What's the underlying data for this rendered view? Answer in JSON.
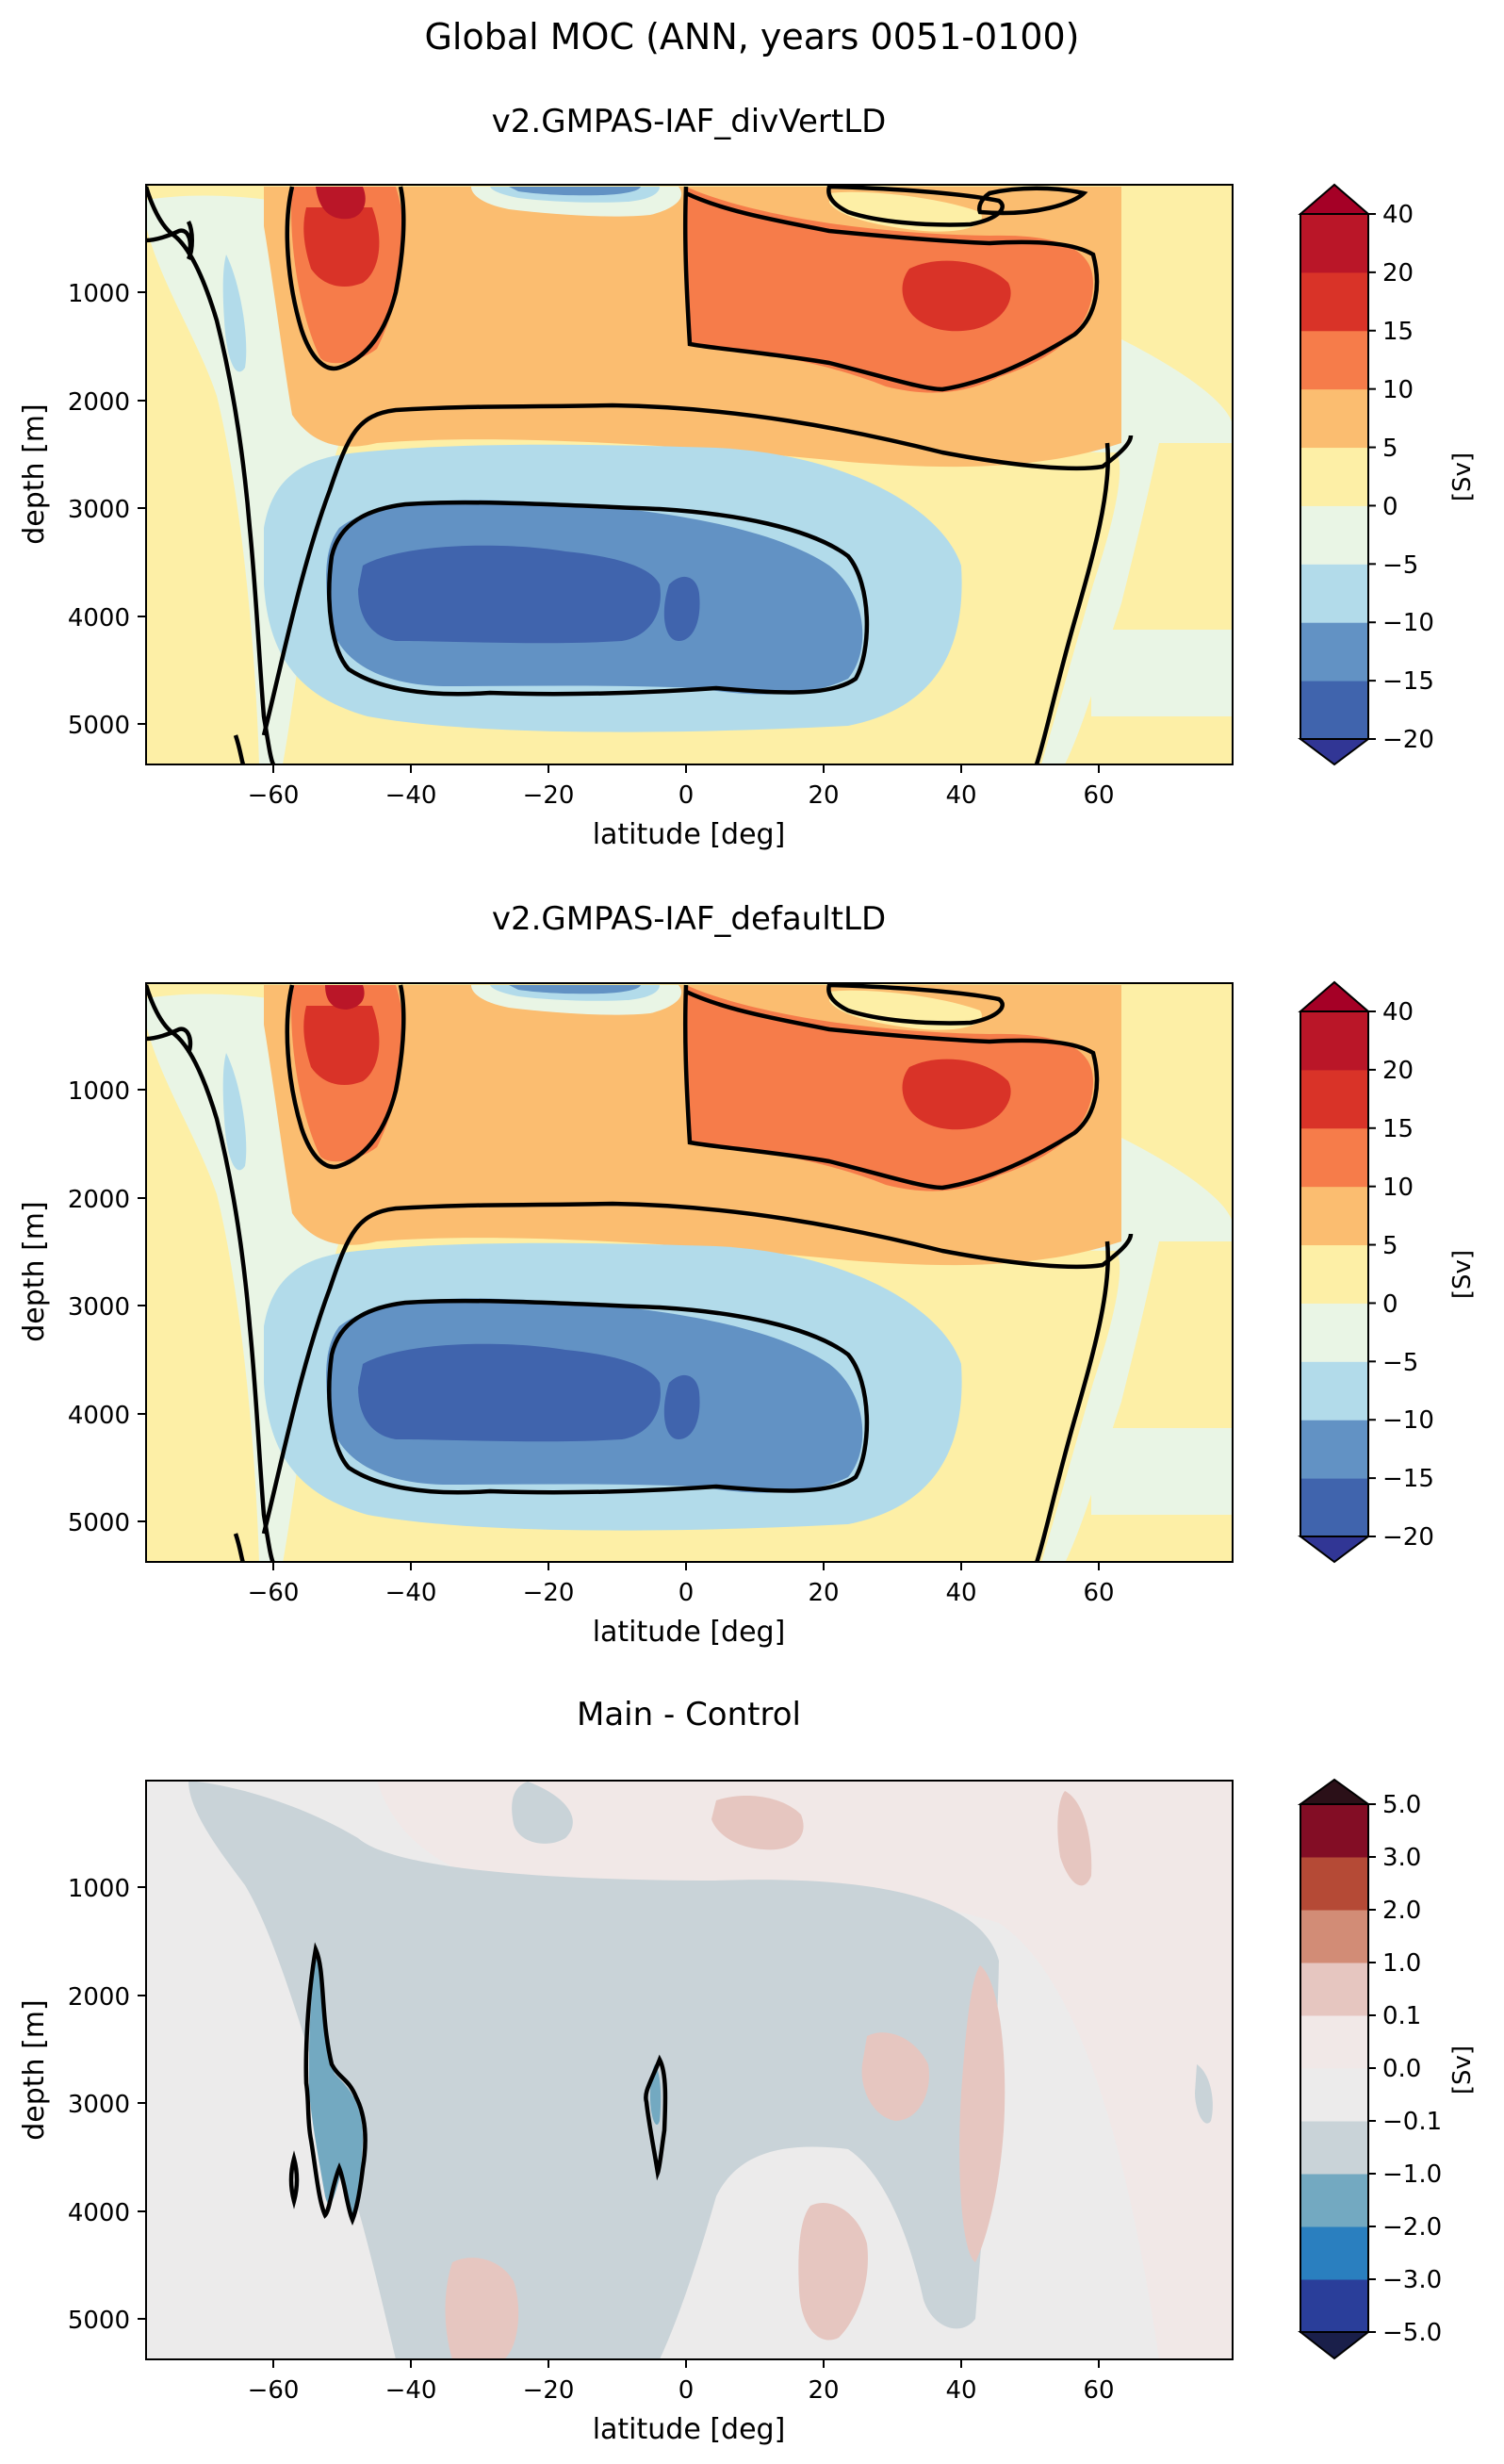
{
  "figure": {
    "title": "Global MOC (ANN, years 0051-0100)"
  },
  "chart_data": [
    {
      "type": "contourf",
      "title": "v2.GMPAS-IAF_divVertLD",
      "xlabel": "latitude [deg]",
      "ylabel": "depth [m]",
      "xlim": [
        -80,
        80
      ],
      "ylim": [
        5400,
        0
      ],
      "xticks": [
        "−60",
        "−40",
        "−20",
        "0",
        "20",
        "40",
        "60"
      ],
      "yticks": [
        "1000",
        "2000",
        "3000",
        "4000",
        "5000"
      ],
      "colorbar_label": "[Sv]",
      "colorbar_ticks": [
        "−20",
        "−15",
        "−10",
        "−5",
        "0",
        "5",
        "10",
        "15",
        "20",
        "40"
      ],
      "levels": [
        -20,
        -15,
        -10,
        -5,
        0,
        5,
        10,
        15,
        20,
        40
      ],
      "colors": {
        "under": "#313695",
        "over": "#a50026",
        "bands": [
          "#4064ad",
          "#6292c4",
          "#b2dbea",
          "#e9f5e5",
          "#fdefa6",
          "#fbbd70",
          "#f67c4a",
          "#d93328",
          "#ba1628"
        ]
      }
    },
    {
      "type": "contourf",
      "title": "v2.GMPAS-IAF_defaultLD",
      "xlabel": "latitude [deg]",
      "ylabel": "depth [m]",
      "xlim": [
        -80,
        80
      ],
      "ylim": [
        5400,
        0
      ],
      "xticks": [
        "−60",
        "−40",
        "−20",
        "0",
        "20",
        "40",
        "60"
      ],
      "yticks": [
        "1000",
        "2000",
        "3000",
        "4000",
        "5000"
      ],
      "colorbar_label": "[Sv]",
      "colorbar_ticks": [
        "−20",
        "−15",
        "−10",
        "−5",
        "0",
        "5",
        "10",
        "15",
        "20",
        "40"
      ],
      "levels": [
        -20,
        -15,
        -10,
        -5,
        0,
        5,
        10,
        15,
        20,
        40
      ],
      "colors": {
        "under": "#313695",
        "over": "#a50026",
        "bands": [
          "#4064ad",
          "#6292c4",
          "#b2dbea",
          "#e9f5e5",
          "#fdefa6",
          "#fbbd70",
          "#f67c4a",
          "#d93328",
          "#ba1628"
        ]
      }
    },
    {
      "type": "contourf",
      "title": "Main - Control",
      "xlabel": "latitude [deg]",
      "ylabel": "depth [m]",
      "xlim": [
        -80,
        80
      ],
      "ylim": [
        5400,
        0
      ],
      "xticks": [
        "−60",
        "−40",
        "−20",
        "0",
        "20",
        "40",
        "60"
      ],
      "yticks": [
        "1000",
        "2000",
        "3000",
        "4000",
        "5000"
      ],
      "colorbar_label": "[Sv]",
      "colorbar_ticks": [
        "−5.0",
        "−3.0",
        "−2.0",
        "−1.0",
        "−0.1",
        "0.0",
        "0.1",
        "1.0",
        "2.0",
        "3.0",
        "5.0"
      ],
      "levels": [
        -5.0,
        -3.0,
        -2.0,
        -1.0,
        -0.1,
        0.0,
        0.1,
        1.0,
        2.0,
        3.0,
        5.0
      ],
      "colors": {
        "under": "#1a1f4a",
        "over": "#2b1018",
        "bands": [
          "#2a3e9a",
          "#2a7fbf",
          "#73a9c1",
          "#c9d3d8",
          "#ecebeb",
          "#f1e8e7",
          "#e6c6c0",
          "#d28c76",
          "#b54a36",
          "#830d25"
        ]
      }
    }
  ]
}
